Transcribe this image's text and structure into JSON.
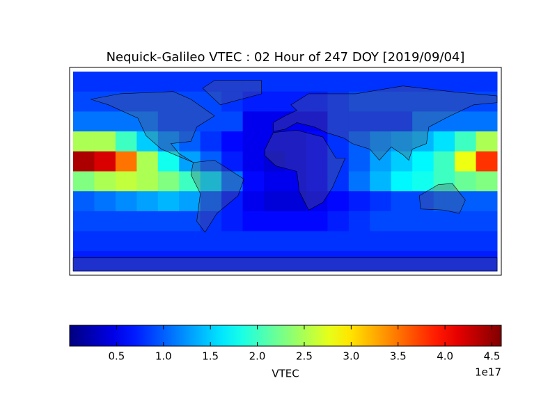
{
  "chart_data": {
    "type": "heatmap",
    "title": "Nequick-Galileo VTEC : 02 Hour of 247 DOY [2019/09/04]",
    "colorbar_label": "VTEC",
    "colorbar_offset_label": "1e17",
    "colormap": "jet",
    "clim": [
      0,
      4.6
    ],
    "cticks": [
      0.5,
      {
        "value": 1,
        "label": "1.0"
      },
      1.5,
      {
        "value": 2,
        "label": "2.0"
      },
      2.5,
      {
        "value": 3,
        "label": "3.0"
      },
      3.5,
      {
        "value": 4,
        "label": "4.0"
      },
      4.5
    ],
    "z": [
      [
        0.8,
        0.8,
        0.8,
        0.8,
        0.8,
        0.8,
        0.8,
        0.8,
        0.8,
        0.8,
        0.8,
        0.8,
        0.8,
        0.8,
        0.8,
        0.8,
        0.8,
        0.8,
        0.8,
        0.8
      ],
      [
        0.9,
        0.9,
        0.9,
        0.9,
        0.9,
        0.9,
        0.9,
        0.8,
        0.7,
        0.7,
        0.7,
        0.7,
        0.8,
        0.9,
        0.9,
        0.9,
        0.9,
        0.9,
        0.9,
        0.9
      ],
      [
        1.1,
        1.1,
        1.1,
        1.1,
        0.9,
        0.9,
        0.9,
        0.9,
        0.5,
        0.5,
        0.5,
        0.5,
        0.8,
        0.8,
        0.8,
        0.8,
        1.1,
        1.1,
        1.1,
        1.1
      ],
      [
        2.5,
        2.5,
        2.0,
        1.5,
        1.2,
        1.0,
        0.8,
        0.6,
        0.5,
        0.5,
        0.5,
        0.6,
        0.8,
        1.0,
        1.2,
        1.3,
        1.4,
        1.6,
        2.0,
        2.5
      ],
      [
        4.4,
        4.2,
        3.5,
        2.5,
        1.8,
        1.3,
        1.0,
        0.7,
        0.5,
        0.4,
        0.5,
        0.6,
        0.8,
        1.0,
        1.3,
        1.5,
        1.7,
        2.0,
        2.8,
        3.8
      ],
      [
        2.3,
        2.5,
        2.6,
        2.5,
        2.3,
        2.0,
        1.6,
        1.1,
        0.6,
        0.5,
        0.5,
        0.6,
        0.8,
        1.1,
        1.4,
        1.7,
        1.8,
        2.0,
        2.2,
        2.3
      ],
      [
        1.0,
        1.1,
        1.2,
        1.3,
        1.4,
        1.3,
        1.0,
        0.7,
        0.5,
        0.4,
        0.4,
        0.5,
        0.6,
        0.7,
        0.8,
        0.9,
        0.9,
        1.0,
        1.0,
        1.0
      ],
      [
        0.9,
        0.9,
        0.9,
        0.9,
        0.9,
        0.9,
        0.8,
        0.7,
        0.6,
        0.6,
        0.6,
        0.6,
        0.7,
        0.8,
        0.9,
        0.9,
        0.9,
        0.9,
        0.9,
        0.9
      ],
      [
        0.8,
        0.8,
        0.8,
        0.8,
        0.8,
        0.8,
        0.8,
        0.8,
        0.8,
        0.8,
        0.8,
        0.8,
        0.8,
        0.8,
        0.8,
        0.8,
        0.8,
        0.8,
        0.8,
        0.8
      ],
      [
        0.7,
        0.7,
        0.7,
        0.7,
        0.7,
        0.7,
        0.7,
        0.7,
        0.7,
        0.7,
        0.7,
        0.7,
        0.7,
        0.7,
        0.7,
        0.7,
        0.7,
        0.7,
        0.7,
        0.7
      ]
    ]
  }
}
